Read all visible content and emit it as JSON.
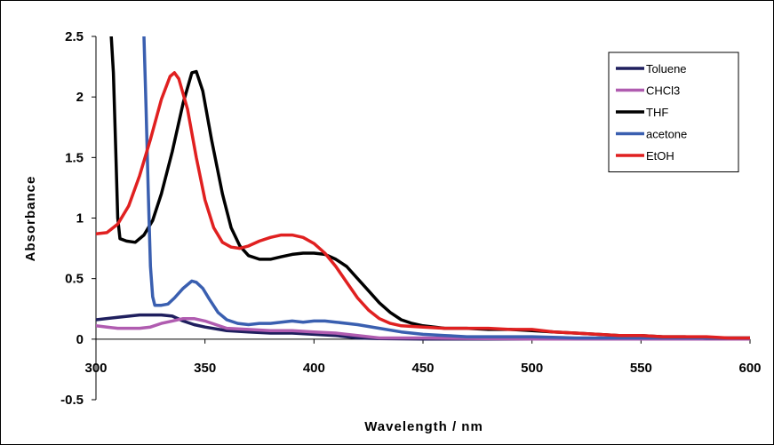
{
  "chart_data": {
    "type": "line",
    "xlabel": "Wavelength / nm",
    "ylabel": "Absorbance",
    "xlim": [
      300,
      600
    ],
    "ylim": [
      -0.5,
      2.5
    ],
    "xticks": [
      300,
      350,
      400,
      450,
      500,
      550,
      600
    ],
    "yticks": [
      -0.5,
      0,
      0.5,
      1,
      1.5,
      2,
      2.5
    ],
    "xtick_labels": [
      "300",
      "350",
      "400",
      "450",
      "500",
      "550",
      "600"
    ],
    "ytick_labels": [
      "-0.5",
      "0",
      "0.5",
      "1",
      "1.5",
      "2",
      "2.5"
    ],
    "grid": false,
    "legend_position": "top-right",
    "series": [
      {
        "name": "Toluene",
        "color": "#1f1f5e",
        "points": [
          [
            300,
            0.16
          ],
          [
            310,
            0.18
          ],
          [
            320,
            0.2
          ],
          [
            330,
            0.2
          ],
          [
            335,
            0.19
          ],
          [
            340,
            0.15
          ],
          [
            345,
            0.12
          ],
          [
            350,
            0.1
          ],
          [
            360,
            0.07
          ],
          [
            370,
            0.06
          ],
          [
            380,
            0.05
          ],
          [
            390,
            0.05
          ],
          [
            400,
            0.04
          ],
          [
            410,
            0.03
          ],
          [
            420,
            0.01
          ],
          [
            430,
            0.005
          ],
          [
            450,
            0.0
          ],
          [
            500,
            0.0
          ],
          [
            550,
            0.0
          ],
          [
            600,
            0.0
          ]
        ]
      },
      {
        "name": "CHCl3",
        "color": "#b05cb0",
        "points": [
          [
            300,
            0.11
          ],
          [
            305,
            0.1
          ],
          [
            310,
            0.09
          ],
          [
            320,
            0.09
          ],
          [
            325,
            0.1
          ],
          [
            330,
            0.13
          ],
          [
            335,
            0.15
          ],
          [
            340,
            0.17
          ],
          [
            345,
            0.17
          ],
          [
            350,
            0.15
          ],
          [
            355,
            0.12
          ],
          [
            360,
            0.09
          ],
          [
            370,
            0.08
          ],
          [
            380,
            0.07
          ],
          [
            390,
            0.07
          ],
          [
            400,
            0.06
          ],
          [
            410,
            0.05
          ],
          [
            420,
            0.03
          ],
          [
            430,
            0.01
          ],
          [
            440,
            0.01
          ],
          [
            450,
            0.01
          ],
          [
            500,
            0.0
          ],
          [
            550,
            0.0
          ],
          [
            600,
            0.0
          ]
        ]
      },
      {
        "name": "THF",
        "color": "#000000",
        "points": [
          [
            307,
            2.5
          ],
          [
            308,
            2.2
          ],
          [
            309,
            1.6
          ],
          [
            310,
            1.0
          ],
          [
            311,
            0.83
          ],
          [
            314,
            0.81
          ],
          [
            318,
            0.8
          ],
          [
            322,
            0.86
          ],
          [
            326,
            0.98
          ],
          [
            330,
            1.2
          ],
          [
            335,
            1.55
          ],
          [
            340,
            1.95
          ],
          [
            344,
            2.2
          ],
          [
            346,
            2.21
          ],
          [
            349,
            2.05
          ],
          [
            353,
            1.65
          ],
          [
            358,
            1.2
          ],
          [
            362,
            0.92
          ],
          [
            366,
            0.77
          ],
          [
            370,
            0.69
          ],
          [
            375,
            0.66
          ],
          [
            380,
            0.66
          ],
          [
            385,
            0.68
          ],
          [
            390,
            0.7
          ],
          [
            395,
            0.71
          ],
          [
            400,
            0.71
          ],
          [
            405,
            0.7
          ],
          [
            410,
            0.66
          ],
          [
            415,
            0.6
          ],
          [
            420,
            0.5
          ],
          [
            425,
            0.4
          ],
          [
            430,
            0.3
          ],
          [
            435,
            0.22
          ],
          [
            440,
            0.16
          ],
          [
            445,
            0.13
          ],
          [
            450,
            0.11
          ],
          [
            460,
            0.09
          ],
          [
            470,
            0.09
          ],
          [
            480,
            0.08
          ],
          [
            490,
            0.08
          ],
          [
            500,
            0.07
          ],
          [
            510,
            0.06
          ],
          [
            520,
            0.05
          ],
          [
            530,
            0.04
          ],
          [
            540,
            0.03
          ],
          [
            550,
            0.03
          ],
          [
            560,
            0.02
          ],
          [
            570,
            0.02
          ],
          [
            580,
            0.01
          ],
          [
            590,
            0.01
          ],
          [
            600,
            0.01
          ]
        ]
      },
      {
        "name": "acetone",
        "color": "#3a5fb0",
        "points": [
          [
            322,
            2.5
          ],
          [
            323,
            1.9
          ],
          [
            324,
            1.2
          ],
          [
            325,
            0.6
          ],
          [
            326,
            0.35
          ],
          [
            327,
            0.28
          ],
          [
            330,
            0.28
          ],
          [
            333,
            0.29
          ],
          [
            336,
            0.34
          ],
          [
            340,
            0.42
          ],
          [
            344,
            0.48
          ],
          [
            346,
            0.47
          ],
          [
            349,
            0.42
          ],
          [
            352,
            0.33
          ],
          [
            356,
            0.22
          ],
          [
            360,
            0.16
          ],
          [
            365,
            0.13
          ],
          [
            370,
            0.12
          ],
          [
            375,
            0.13
          ],
          [
            380,
            0.13
          ],
          [
            385,
            0.14
          ],
          [
            390,
            0.15
          ],
          [
            395,
            0.14
          ],
          [
            400,
            0.15
          ],
          [
            405,
            0.15
          ],
          [
            410,
            0.14
          ],
          [
            420,
            0.12
          ],
          [
            430,
            0.09
          ],
          [
            440,
            0.06
          ],
          [
            450,
            0.04
          ],
          [
            460,
            0.03
          ],
          [
            470,
            0.02
          ],
          [
            480,
            0.02
          ],
          [
            500,
            0.02
          ],
          [
            520,
            0.01
          ],
          [
            550,
            0.01
          ],
          [
            600,
            0.01
          ]
        ]
      },
      {
        "name": "EtOH",
        "color": "#e02020",
        "points": [
          [
            300,
            0.87
          ],
          [
            305,
            0.88
          ],
          [
            310,
            0.95
          ],
          [
            315,
            1.1
          ],
          [
            320,
            1.35
          ],
          [
            325,
            1.65
          ],
          [
            330,
            1.98
          ],
          [
            334,
            2.17
          ],
          [
            336,
            2.2
          ],
          [
            338,
            2.15
          ],
          [
            342,
            1.9
          ],
          [
            346,
            1.5
          ],
          [
            350,
            1.15
          ],
          [
            354,
            0.92
          ],
          [
            358,
            0.8
          ],
          [
            362,
            0.76
          ],
          [
            366,
            0.75
          ],
          [
            370,
            0.77
          ],
          [
            375,
            0.81
          ],
          [
            380,
            0.84
          ],
          [
            385,
            0.86
          ],
          [
            390,
            0.86
          ],
          [
            395,
            0.84
          ],
          [
            400,
            0.79
          ],
          [
            405,
            0.71
          ],
          [
            410,
            0.6
          ],
          [
            415,
            0.47
          ],
          [
            420,
            0.34
          ],
          [
            425,
            0.24
          ],
          [
            430,
            0.17
          ],
          [
            435,
            0.13
          ],
          [
            440,
            0.11
          ],
          [
            450,
            0.1
          ],
          [
            460,
            0.09
          ],
          [
            470,
            0.09
          ],
          [
            480,
            0.09
          ],
          [
            490,
            0.08
          ],
          [
            500,
            0.08
          ],
          [
            510,
            0.06
          ],
          [
            520,
            0.05
          ],
          [
            530,
            0.04
          ],
          [
            540,
            0.03
          ],
          [
            550,
            0.03
          ],
          [
            560,
            0.02
          ],
          [
            570,
            0.02
          ],
          [
            580,
            0.02
          ],
          [
            590,
            0.01
          ],
          [
            600,
            0.01
          ]
        ]
      }
    ]
  }
}
